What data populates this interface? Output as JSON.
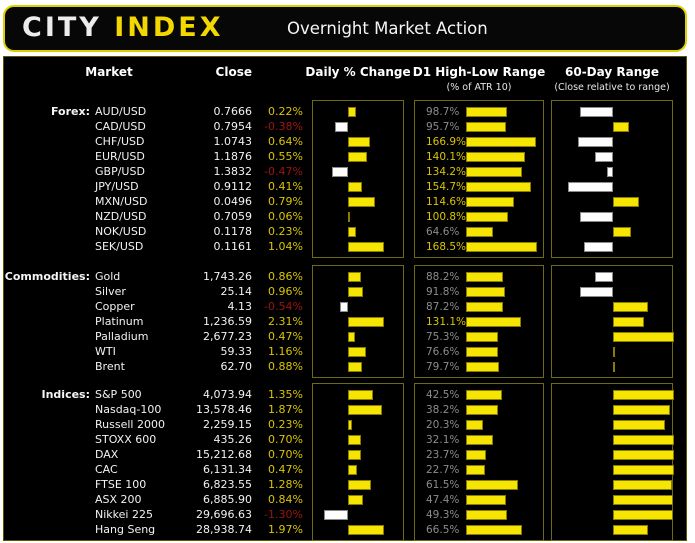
{
  "header": {
    "logo_city": "CITY",
    "logo_index": "INDEX",
    "title": "Overnight Market Action"
  },
  "columns": {
    "market": "Market",
    "close": "Close",
    "daily": "Daily % Change",
    "d1": "D1 High-Low Range",
    "d1_sub": "(% of ATR 10)",
    "range60": "60-Day Range",
    "range60_sub": "(Close relative to range)"
  },
  "colors": {
    "bar_yellow": "#f5e500",
    "bar_yellow_border": "#8a7d06",
    "bar_white": "#fdfdfd",
    "bar_white_border": "#8a8a8a",
    "text_yellow": "#d9c500",
    "text_red": "#9e1414",
    "text_gray": "#8c8c8c",
    "text_white": "#f2f2f2"
  },
  "chart_data": {
    "type": "bar",
    "title": "Overnight Market Action",
    "legend": "Daily % change bars: yellow = positive, white = negative. D1 High-Low Range bars scaled to % of ATR 10 (label yellow when >= 100%, gray below). 60-Day Range bars: from range midpoint, yellow right = close in upper half, white left = close in lower half.",
    "groups": [
      {
        "id": "forex",
        "label": "Forex:",
        "rows": [
          {
            "market": "AUD/USD",
            "close": "0.7666",
            "daily_pct": 0.22,
            "daily_label": "0.22%",
            "d1_pct": 98.7,
            "d1_label": "98.7%",
            "range60_pos": 0.23
          },
          {
            "market": "CAD/USD",
            "close": "0.7954",
            "daily_pct": -0.38,
            "daily_label": "-0.38%",
            "d1_pct": 95.7,
            "d1_label": "95.7%",
            "range60_pos": 0.63
          },
          {
            "market": "CHF/USD",
            "close": "1.0743",
            "daily_pct": 0.64,
            "daily_label": "0.64%",
            "d1_pct": 166.9,
            "d1_label": "166.9%",
            "range60_pos": 0.21
          },
          {
            "market": "EUR/USD",
            "close": "1.1876",
            "daily_pct": 0.55,
            "daily_label": "0.55%",
            "d1_pct": 140.1,
            "d1_label": "140.1%",
            "range60_pos": 0.35
          },
          {
            "market": "GBP/USD",
            "close": "1.3832",
            "daily_pct": -0.47,
            "daily_label": "-0.47%",
            "d1_pct": 134.2,
            "d1_label": "134.2%",
            "range60_pos": 0.45
          },
          {
            "market": "JPY/USD",
            "close": "0.9112",
            "daily_pct": 0.41,
            "daily_label": "0.41%",
            "d1_pct": 154.7,
            "d1_label": "154.7%",
            "range60_pos": 0.13
          },
          {
            "market": "MXN/USD",
            "close": "0.0496",
            "daily_pct": 0.79,
            "daily_label": "0.79%",
            "d1_pct": 114.6,
            "d1_label": "114.6%",
            "range60_pos": 0.71
          },
          {
            "market": "NZD/USD",
            "close": "0.7059",
            "daily_pct": 0.06,
            "daily_label": "0.06%",
            "d1_pct": 100.8,
            "d1_label": "100.8%",
            "range60_pos": 0.23
          },
          {
            "market": "NOK/USD",
            "close": "0.1178",
            "daily_pct": 0.23,
            "daily_label": "0.23%",
            "d1_pct": 64.6,
            "d1_label": "64.6%",
            "range60_pos": 0.65
          },
          {
            "market": "SEK/USD",
            "close": "0.1161",
            "daily_pct": 1.04,
            "daily_label": "1.04%",
            "d1_pct": 168.5,
            "d1_label": "168.5%",
            "range60_pos": 0.26
          }
        ]
      },
      {
        "id": "commodities",
        "label": "Commodities:",
        "rows": [
          {
            "market": "Gold",
            "close": "1,743.26",
            "daily_pct": 0.86,
            "daily_label": "0.86%",
            "d1_pct": 88.2,
            "d1_label": "88.2%",
            "range60_pos": 0.35
          },
          {
            "market": "Silver",
            "close": "25.14",
            "daily_pct": 0.96,
            "daily_label": "0.96%",
            "d1_pct": 91.8,
            "d1_label": "91.8%",
            "range60_pos": 0.23
          },
          {
            "market": "Copper",
            "close": "4.13",
            "daily_pct": -0.54,
            "daily_label": "-0.54%",
            "d1_pct": 87.2,
            "d1_label": "87.2%",
            "range60_pos": 0.79
          },
          {
            "market": "Platinum",
            "close": "1,236.59",
            "daily_pct": 2.31,
            "daily_label": "2.31%",
            "d1_pct": 131.1,
            "d1_label": "131.1%",
            "range60_pos": 0.75
          },
          {
            "market": "Palladium",
            "close": "2,677.23",
            "daily_pct": 0.47,
            "daily_label": "0.47%",
            "d1_pct": 75.3,
            "d1_label": "75.3%",
            "range60_pos": 1.0
          },
          {
            "market": "WTI",
            "close": "59.33",
            "daily_pct": 1.16,
            "daily_label": "1.16%",
            "d1_pct": 76.6,
            "d1_label": "76.6%",
            "range60_pos": 0.52
          },
          {
            "market": "Brent",
            "close": "62.70",
            "daily_pct": 0.88,
            "daily_label": "0.88%",
            "d1_pct": 79.7,
            "d1_label": "79.7%",
            "range60_pos": 0.52
          }
        ]
      },
      {
        "id": "indices",
        "label": "Indices:",
        "rows": [
          {
            "market": "S&P 500",
            "close": "4,073.94",
            "daily_pct": 1.35,
            "daily_label": "1.35%",
            "d1_pct": 42.5,
            "d1_label": "42.5%",
            "range60_pos": 1.0
          },
          {
            "market": "Nasdaq-100",
            "close": "13,578.46",
            "daily_pct": 1.87,
            "daily_label": "1.87%",
            "d1_pct": 38.2,
            "d1_label": "38.2%",
            "range60_pos": 0.97
          },
          {
            "market": "Russell 2000",
            "close": "2,259.15",
            "daily_pct": 0.23,
            "daily_label": "0.23%",
            "d1_pct": 20.3,
            "d1_label": "20.3%",
            "range60_pos": 0.93
          },
          {
            "market": "STOXX 600",
            "close": "435.26",
            "daily_pct": 0.7,
            "daily_label": "0.70%",
            "d1_pct": 32.1,
            "d1_label": "32.1%",
            "range60_pos": 1.0
          },
          {
            "market": "DAX",
            "close": "15,212.68",
            "daily_pct": 0.7,
            "daily_label": "0.70%",
            "d1_pct": 23.7,
            "d1_label": "23.7%",
            "range60_pos": 1.0
          },
          {
            "market": "CAC",
            "close": "6,131.34",
            "daily_pct": 0.47,
            "daily_label": "0.47%",
            "d1_pct": 22.7,
            "d1_label": "22.7%",
            "range60_pos": 1.0
          },
          {
            "market": "FTSE 100",
            "close": "6,823.55",
            "daily_pct": 1.28,
            "daily_label": "1.28%",
            "d1_pct": 61.5,
            "d1_label": "61.5%",
            "range60_pos": 0.98
          },
          {
            "market": "ASX 200",
            "close": "6,885.90",
            "daily_pct": 0.84,
            "daily_label": "0.84%",
            "d1_pct": 47.4,
            "d1_label": "47.4%",
            "range60_pos": 0.99
          },
          {
            "market": "Nikkei 225",
            "close": "29,696.63",
            "daily_pct": -1.3,
            "daily_label": "-1.30%",
            "d1_pct": 49.3,
            "d1_label": "49.3%",
            "range60_pos": 0.99
          },
          {
            "market": "Hang Seng",
            "close": "28,938.74",
            "daily_pct": 1.97,
            "daily_label": "1.97%",
            "d1_pct": 66.5,
            "d1_label": "66.5%",
            "range60_pos": 0.79
          }
        ]
      }
    ]
  }
}
